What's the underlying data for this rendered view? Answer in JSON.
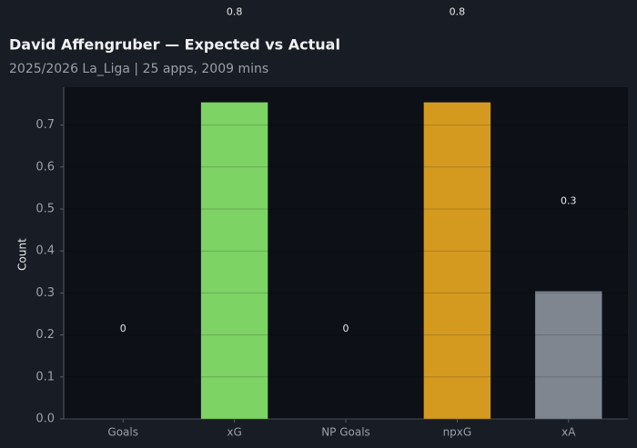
{
  "chart_data": {
    "type": "bar",
    "title": "David Affengruber — Expected vs Actual",
    "subtitle": "2025/2026 La_Liga | 25 apps, 2009 mins",
    "y_label": "Count",
    "categories": [
      "Goals",
      "xG",
      "NP Goals",
      "npxG",
      "xA"
    ],
    "values": [
      0,
      0.754,
      0,
      0.754,
      0.304
    ],
    "value_labels": [
      "0",
      "0.8",
      "0",
      "0.8",
      "0.3"
    ],
    "colors": [
      "#7dd364",
      "#7dd364",
      "#d49a20",
      "#d49a20",
      "#7f8690"
    ],
    "ylim": [
      0,
      0.79
    ],
    "yticks": [
      {
        "value": 0,
        "label": "0.0"
      },
      0.1,
      0.2,
      0.3,
      0.4,
      0.5,
      0.6,
      0.7
    ],
    "grid": true
  }
}
